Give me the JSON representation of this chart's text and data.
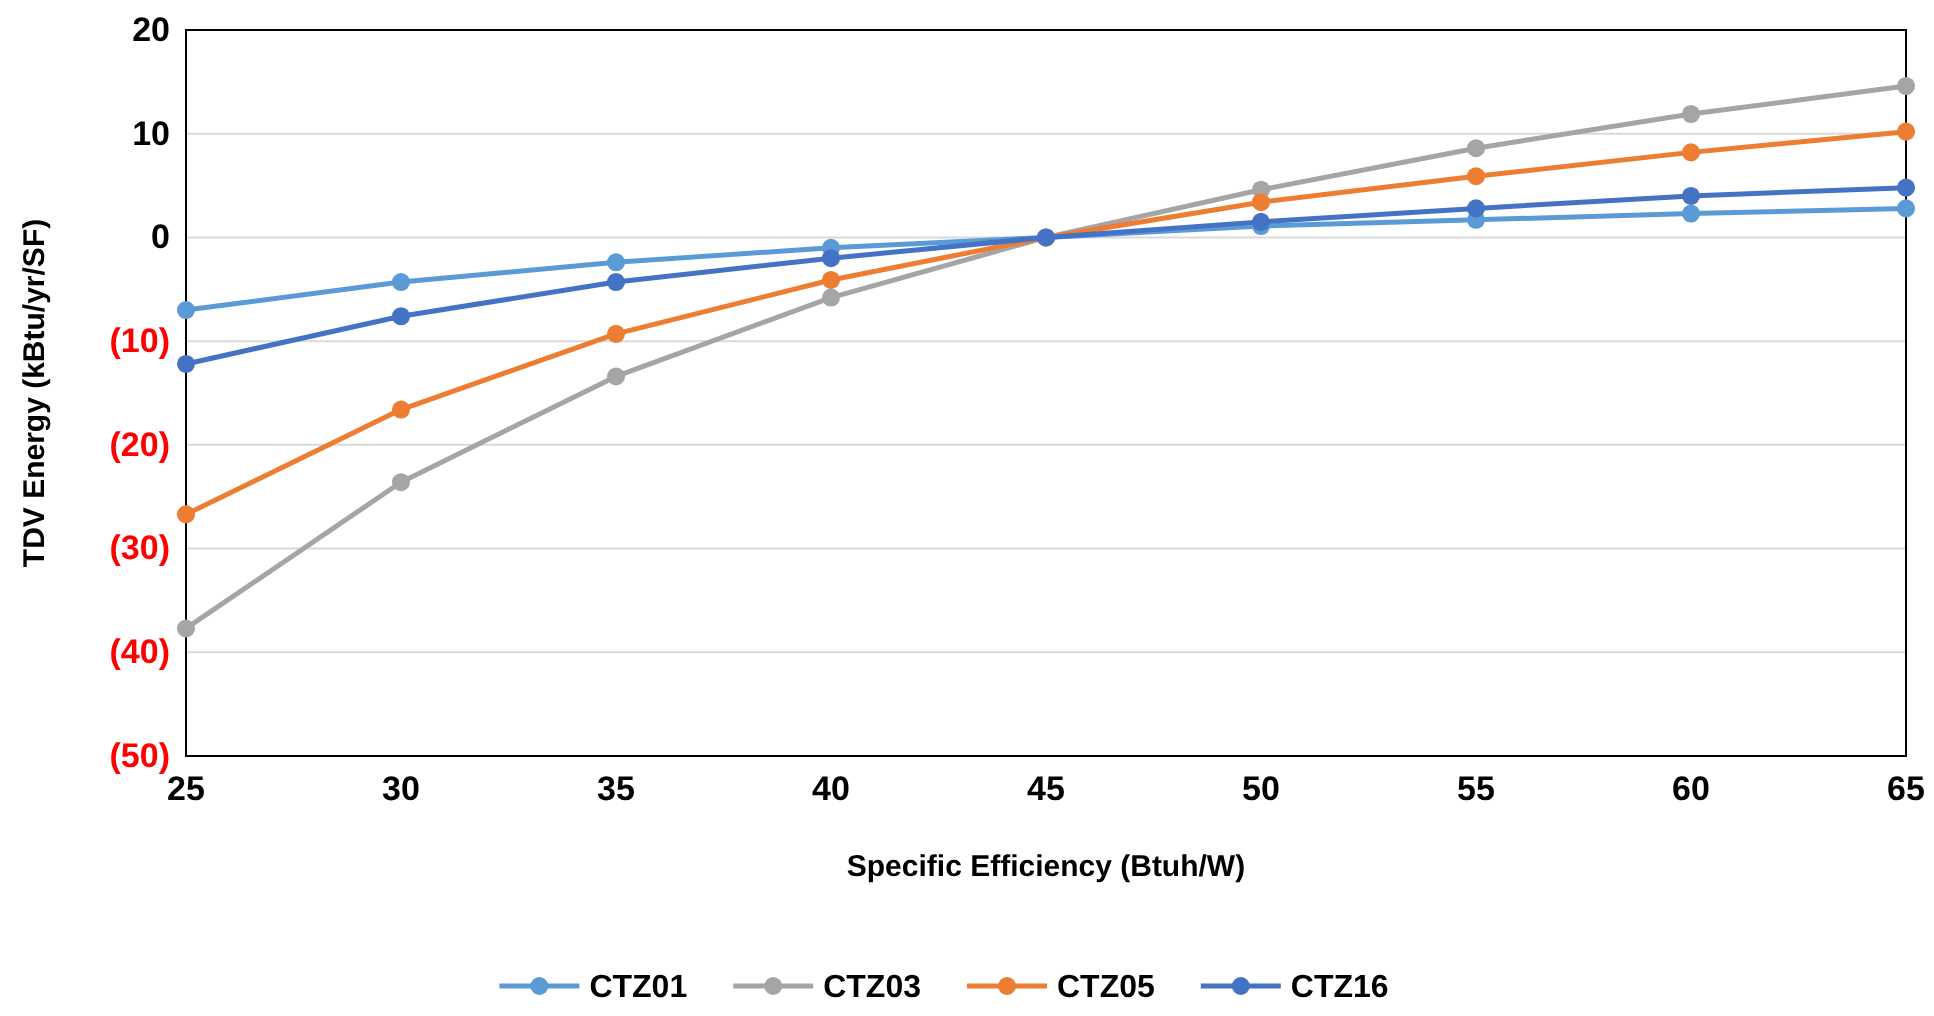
{
  "chart_data": {
    "type": "line",
    "xlabel": "Specific Efficiency (Btuh/W)",
    "ylabel": "TDV Energy (kBtu/yr/SF)",
    "x": [
      25,
      30,
      35,
      40,
      45,
      50,
      55,
      60,
      65
    ],
    "series": [
      {
        "name": "CTZ01",
        "color": "#5b9bd5",
        "values": [
          -7.0,
          -4.3,
          -2.4,
          -1.0,
          0,
          1.1,
          1.7,
          2.3,
          2.8
        ]
      },
      {
        "name": "CTZ03",
        "color": "#a5a5a5",
        "values": [
          -37.7,
          -23.6,
          -13.4,
          -5.8,
          0,
          4.6,
          8.6,
          11.9,
          14.6
        ]
      },
      {
        "name": "CTZ05",
        "color": "#ed7d31",
        "values": [
          -26.7,
          -16.6,
          -9.3,
          -4.1,
          0,
          3.4,
          5.9,
          8.2,
          10.2
        ]
      },
      {
        "name": "CTZ16",
        "color": "#4472c4",
        "values": [
          -12.2,
          -7.6,
          -4.3,
          -2.0,
          0,
          1.5,
          2.8,
          4.0,
          4.8
        ]
      }
    ],
    "xlim": [
      25,
      65
    ],
    "xticks": [
      25,
      30,
      35,
      40,
      45,
      50,
      55,
      60,
      65
    ],
    "ylim": [
      -50,
      20
    ],
    "yticks": [
      {
        "value": -50,
        "label": "(50)"
      },
      {
        "value": -40,
        "label": "(40)"
      },
      {
        "value": -30,
        "label": "(30)"
      },
      {
        "value": -20,
        "label": "(20)"
      },
      {
        "value": -10,
        "label": "(10)"
      },
      0,
      10,
      20
    ],
    "grid": "y",
    "legend": "bottom",
    "marker": "circle",
    "line_style": "solid"
  }
}
